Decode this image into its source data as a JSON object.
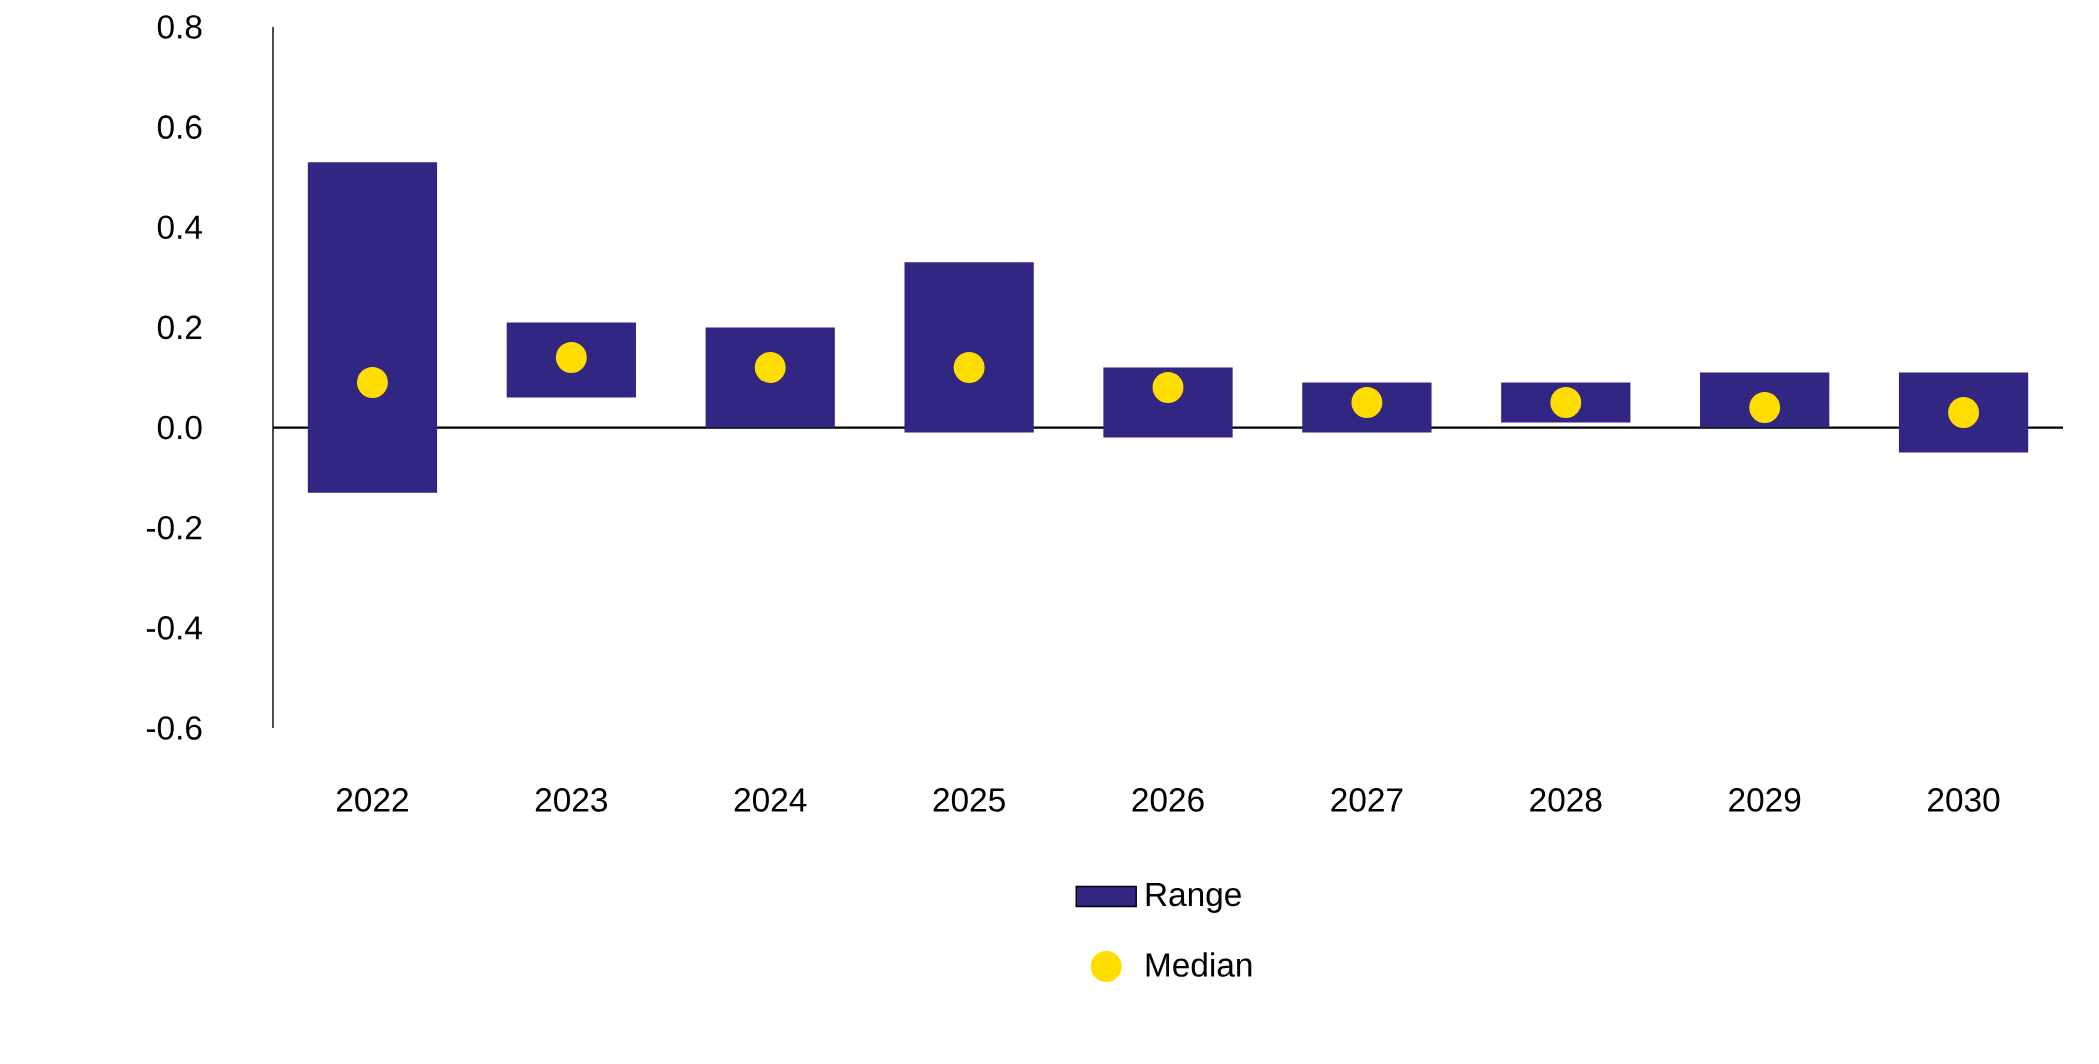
{
  "chart_data": {
    "type": "bar",
    "categories": [
      "2022",
      "2023",
      "2024",
      "2025",
      "2026",
      "2027",
      "2028",
      "2029",
      "2030"
    ],
    "series": [
      {
        "name": "Range",
        "color": "#312783",
        "base": [
          -0.13,
          0.06,
          0.0,
          -0.01,
          -0.02,
          -0.01,
          0.01,
          0.0,
          -0.05
        ],
        "values": [
          0.66,
          0.15,
          0.2,
          0.34,
          0.14,
          0.1,
          0.08,
          0.11,
          0.16
        ]
      },
      {
        "name": "Median",
        "type": "scatter",
        "color": "#ffdd00",
        "values": [
          0.09,
          0.14,
          0.12,
          0.12,
          0.08,
          0.05,
          0.05,
          0.04,
          0.03
        ]
      }
    ],
    "ylim": [
      -0.6,
      0.8
    ],
    "yticks": [
      {
        "value": -0.6,
        "label": "-0.6"
      },
      {
        "value": -0.4,
        "label": "-0.4"
      },
      {
        "value": -0.2,
        "label": "-0.2"
      },
      {
        "value": 0,
        "label": "0.0"
      },
      {
        "value": 0.2,
        "label": "0.2"
      },
      {
        "value": 0.4,
        "label": "0.4"
      },
      {
        "value": 0.6,
        "label": "0.6"
      },
      {
        "value": 0.8,
        "label": "0.8"
      }
    ],
    "legend": "bottom"
  }
}
